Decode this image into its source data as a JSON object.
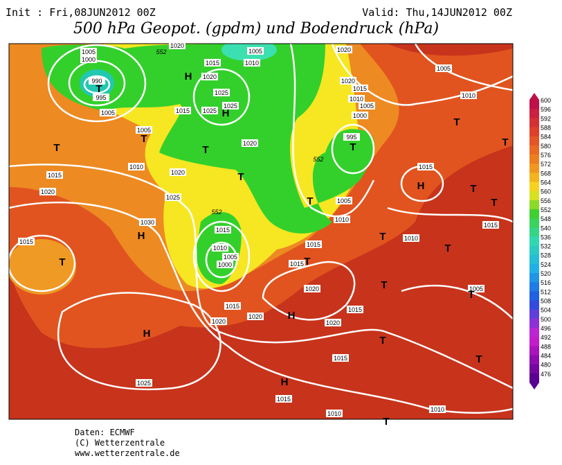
{
  "header": {
    "init": "Init : Fri,08JUN2012  00Z",
    "valid": "Valid: Thu,14JUN2012  00Z",
    "title": "500 hPa Geopot. (gpdm) und Bodendruck (hPa)"
  },
  "map": {
    "isobar_labels": [
      1005,
      1000,
      990,
      995,
      1005,
      1005,
      1010,
      1015,
      1020,
      1020,
      1025,
      1030,
      1015,
      1020,
      1015,
      1020,
      1025,
      1025,
      1025,
      1015,
      1005,
      1010,
      1020,
      1020,
      1020,
      1015,
      1010,
      1005,
      1000,
      995,
      1005,
      1010,
      1015,
      1015,
      1015,
      1010,
      1005,
      1000,
      1015,
      1020,
      1020,
      1020,
      1015,
      1020,
      1015,
      1015,
      1010,
      1010,
      1025,
      1005,
      1010,
      1015,
      1015,
      1010,
      1005
    ],
    "height_labels": [
      552,
      552,
      552
    ],
    "pressure_centers": [
      "T",
      "H",
      "H",
      "T",
      "T",
      "T",
      "T",
      "T",
      "T",
      "H",
      "T",
      "T",
      "T",
      "T",
      "H",
      "T",
      "T",
      "T",
      "T",
      "T",
      "H",
      "H",
      "T",
      "T",
      "H",
      "T",
      "T"
    ]
  },
  "scale": {
    "labels": [
      600,
      596,
      592,
      588,
      584,
      580,
      576,
      572,
      568,
      564,
      560,
      556,
      552,
      548,
      540,
      536,
      532,
      528,
      524,
      520,
      516,
      512,
      508,
      504,
      500,
      496,
      492,
      488,
      484,
      480,
      476
    ]
  },
  "footer": {
    "source": "Daten: ECMWF",
    "copyright": "(C) Wetterzentrale",
    "url": "www.wetterzentrale.de"
  }
}
